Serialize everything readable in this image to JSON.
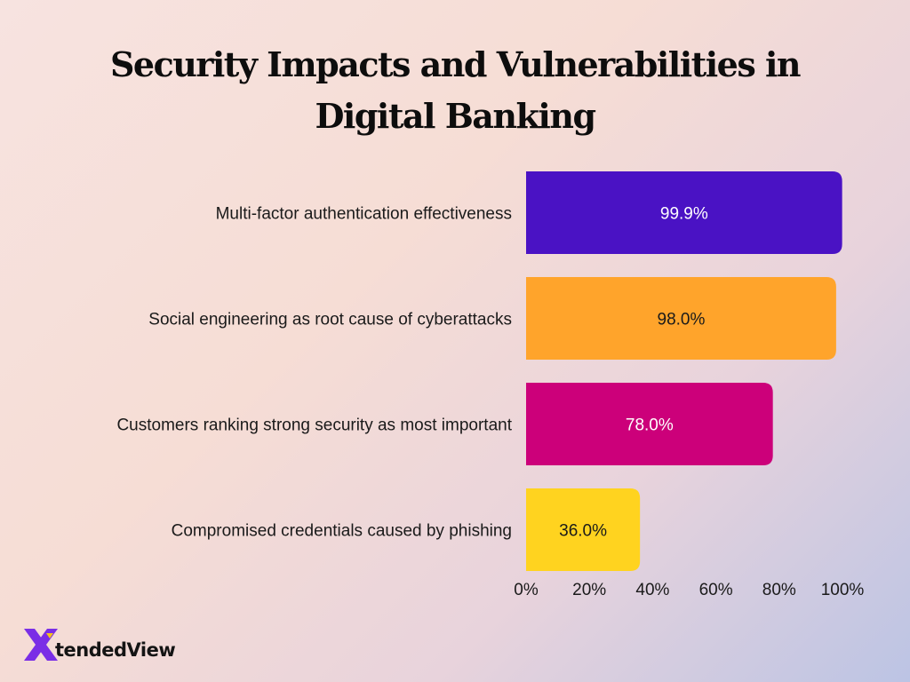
{
  "chart_data": {
    "type": "bar",
    "orientation": "horizontal",
    "title": "Security Impacts and Vulnerabilities in Digital Banking",
    "categories": [
      "Multi-factor authentication effectiveness",
      "Social engineering as root cause of cyberattacks",
      "Customers ranking strong security as most important",
      "Compromised credentials caused by phishing"
    ],
    "values": [
      99.9,
      98.0,
      78.0,
      36.0
    ],
    "value_labels": [
      "99.9%",
      "98.0%",
      "78.0%",
      "36.0%"
    ],
    "bar_colors": [
      "#4a12c4",
      "#ffa42b",
      "#cc007a",
      "#ffd31f"
    ],
    "label_colors": [
      "#ffffff",
      "#1a1a1a",
      "#ffffff",
      "#1a1a1a"
    ],
    "x_ticks": [
      "0%",
      "20%",
      "40%",
      "60%",
      "80%",
      "100%"
    ],
    "xlim": [
      0,
      100
    ],
    "xlabel": "",
    "ylabel": "",
    "grid": false,
    "legend": "none"
  },
  "brand": {
    "logo_text": "tendedView",
    "logo_x_letter": "X",
    "logo_colors": [
      "#7a2ee6",
      "#f5c518"
    ]
  }
}
